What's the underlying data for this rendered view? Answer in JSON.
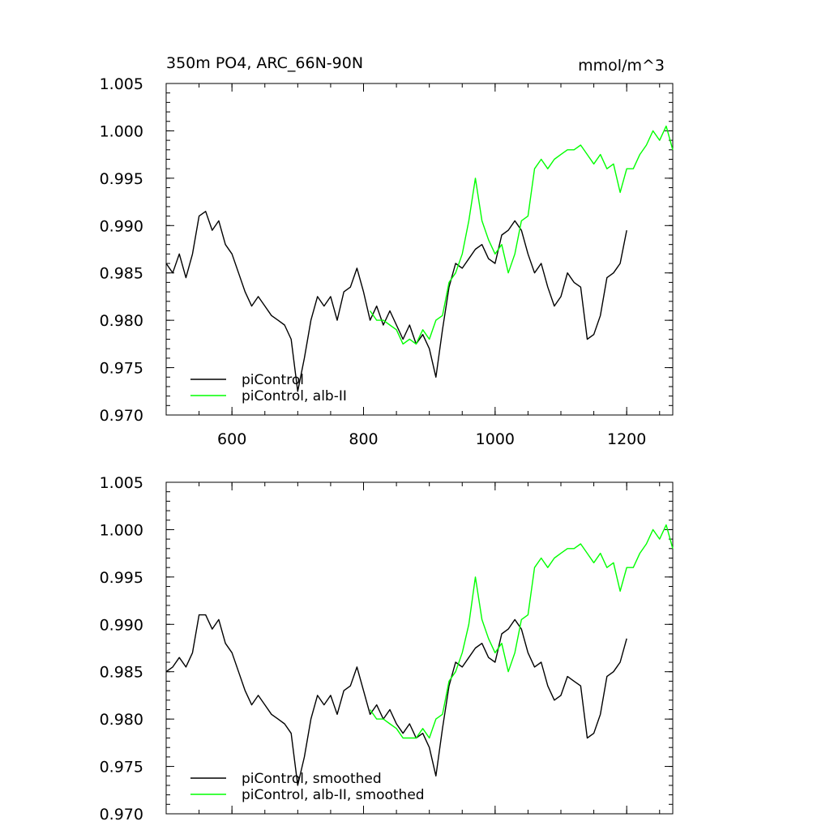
{
  "figure": {
    "title_left": "350m PO4, ARC_66N-90N",
    "title_right": "mmol/m^3"
  },
  "colors": {
    "piControl": "#000000",
    "albII": "#00ff00"
  },
  "chart_data": [
    {
      "type": "line",
      "title": "350m PO4, ARC_66N-90N",
      "units": "mmol/m^3",
      "xlim": [
        500,
        1270
      ],
      "ylim": [
        0.97,
        1.005
      ],
      "xticks": [
        600,
        800,
        1000,
        1200
      ],
      "xtick_labels": [
        "600",
        "800",
        "1000",
        "1200"
      ],
      "yticks": [
        0.97,
        0.975,
        0.98,
        0.985,
        0.99,
        0.995,
        1.0,
        1.005
      ],
      "ytick_labels": [
        "0.970",
        "0.975",
        "0.980",
        "0.985",
        "0.990",
        "0.995",
        "1.000",
        "1.005"
      ],
      "legend_position": "bottom-left",
      "series": [
        {
          "name": "piControl",
          "color": "#000000",
          "x": [
            500,
            510,
            520,
            530,
            540,
            550,
            560,
            570,
            580,
            590,
            600,
            610,
            620,
            630,
            640,
            650,
            660,
            670,
            680,
            690,
            700,
            710,
            720,
            730,
            740,
            750,
            760,
            770,
            780,
            790,
            800,
            810,
            820,
            830,
            840,
            850,
            860,
            870,
            880,
            890,
            900,
            910,
            920,
            930,
            940,
            950,
            960,
            970,
            980,
            990,
            1000,
            1010,
            1020,
            1030,
            1040,
            1050,
            1060,
            1070,
            1080,
            1090,
            1100,
            1110,
            1120,
            1130,
            1140,
            1150,
            1160,
            1170,
            1180,
            1190,
            1200
          ],
          "y": [
            0.986,
            0.985,
            0.987,
            0.9845,
            0.987,
            0.991,
            0.9915,
            0.9895,
            0.9905,
            0.988,
            0.987,
            0.985,
            0.983,
            0.9815,
            0.9825,
            0.9815,
            0.9805,
            0.98,
            0.9795,
            0.978,
            0.9725,
            0.976,
            0.98,
            0.9825,
            0.9815,
            0.9825,
            0.98,
            0.983,
            0.9835,
            0.9855,
            0.983,
            0.98,
            0.9815,
            0.9795,
            0.981,
            0.9795,
            0.978,
            0.9795,
            0.9775,
            0.9785,
            0.977,
            0.974,
            0.979,
            0.9835,
            0.986,
            0.9855,
            0.9865,
            0.9875,
            0.988,
            0.9865,
            0.986,
            0.989,
            0.9895,
            0.9905,
            0.9895,
            0.987,
            0.985,
            0.986,
            0.9835,
            0.9815,
            0.9825,
            0.985,
            0.984,
            0.9835,
            0.978,
            0.9785,
            0.9805,
            0.9845,
            0.985,
            0.986,
            0.9895
          ]
        },
        {
          "name": "piControl, alb-II",
          "color": "#00ff00",
          "x": [
            810,
            820,
            830,
            840,
            850,
            860,
            870,
            880,
            890,
            900,
            910,
            920,
            930,
            940,
            950,
            960,
            970,
            980,
            990,
            1000,
            1010,
            1020,
            1030,
            1040,
            1050,
            1060,
            1070,
            1080,
            1090,
            1100,
            1110,
            1120,
            1130,
            1140,
            1150,
            1160,
            1170,
            1180,
            1190,
            1200,
            1210,
            1220,
            1230,
            1240,
            1250,
            1260,
            1270
          ],
          "y": [
            0.981,
            0.98,
            0.98,
            0.9795,
            0.979,
            0.9775,
            0.978,
            0.9775,
            0.979,
            0.978,
            0.98,
            0.9805,
            0.984,
            0.985,
            0.987,
            0.9905,
            0.995,
            0.9905,
            0.9885,
            0.987,
            0.988,
            0.985,
            0.987,
            0.9905,
            0.991,
            0.996,
            0.997,
            0.996,
            0.997,
            0.9975,
            0.998,
            0.998,
            0.9985,
            0.9975,
            0.9965,
            0.9975,
            0.996,
            0.9965,
            0.9935,
            0.996,
            0.996,
            0.9975,
            0.9985,
            1.0,
            0.999,
            1.0005,
            0.998
          ]
        }
      ]
    },
    {
      "type": "line",
      "xlim": [
        500,
        1270
      ],
      "ylim": [
        0.97,
        1.005
      ],
      "xticks": [
        600,
        800,
        1000,
        1200
      ],
      "yticks": [
        0.97,
        0.975,
        0.98,
        0.985,
        0.99,
        0.995,
        1.0,
        1.005
      ],
      "ytick_labels": [
        "0.970",
        "0.975",
        "0.980",
        "0.985",
        "0.990",
        "0.995",
        "1.000",
        "1.005"
      ],
      "legend_position": "bottom-left",
      "series": [
        {
          "name": "piControl, smoothed",
          "color": "#000000",
          "x": [
            500,
            510,
            520,
            530,
            540,
            550,
            560,
            570,
            580,
            590,
            600,
            610,
            620,
            630,
            640,
            650,
            660,
            670,
            680,
            690,
            700,
            710,
            720,
            730,
            740,
            750,
            760,
            770,
            780,
            790,
            800,
            810,
            820,
            830,
            840,
            850,
            860,
            870,
            880,
            890,
            900,
            910,
            920,
            930,
            940,
            950,
            960,
            970,
            980,
            990,
            1000,
            1010,
            1020,
            1030,
            1040,
            1050,
            1060,
            1070,
            1080,
            1090,
            1100,
            1110,
            1120,
            1130,
            1140,
            1150,
            1160,
            1170,
            1180,
            1190,
            1200
          ],
          "y": [
            0.985,
            0.9855,
            0.9865,
            0.9855,
            0.987,
            0.991,
            0.991,
            0.9895,
            0.9905,
            0.988,
            0.987,
            0.985,
            0.983,
            0.9815,
            0.9825,
            0.9815,
            0.9805,
            0.98,
            0.9795,
            0.9785,
            0.973,
            0.976,
            0.98,
            0.9825,
            0.9815,
            0.9825,
            0.9805,
            0.983,
            0.9835,
            0.9855,
            0.983,
            0.9805,
            0.9815,
            0.98,
            0.981,
            0.9795,
            0.9785,
            0.9795,
            0.978,
            0.9785,
            0.977,
            0.974,
            0.979,
            0.9835,
            0.986,
            0.9855,
            0.9865,
            0.9875,
            0.988,
            0.9865,
            0.986,
            0.989,
            0.9895,
            0.9905,
            0.9895,
            0.987,
            0.9855,
            0.986,
            0.9835,
            0.982,
            0.9825,
            0.9845,
            0.984,
            0.9835,
            0.978,
            0.9785,
            0.9805,
            0.9845,
            0.985,
            0.986,
            0.9885
          ]
        },
        {
          "name": "piControl, alb-II, smoothed",
          "color": "#00ff00",
          "x": [
            810,
            820,
            830,
            840,
            850,
            860,
            870,
            880,
            890,
            900,
            910,
            920,
            930,
            940,
            950,
            960,
            970,
            980,
            990,
            1000,
            1010,
            1020,
            1030,
            1040,
            1050,
            1060,
            1070,
            1080,
            1090,
            1100,
            1110,
            1120,
            1130,
            1140,
            1150,
            1160,
            1170,
            1180,
            1190,
            1200,
            1210,
            1220,
            1230,
            1240,
            1250,
            1260,
            1270
          ],
          "y": [
            0.981,
            0.98,
            0.98,
            0.9795,
            0.979,
            0.978,
            0.978,
            0.978,
            0.979,
            0.978,
            0.98,
            0.9805,
            0.984,
            0.985,
            0.987,
            0.99,
            0.995,
            0.9905,
            0.9885,
            0.987,
            0.988,
            0.985,
            0.987,
            0.9905,
            0.991,
            0.996,
            0.997,
            0.996,
            0.997,
            0.9975,
            0.998,
            0.998,
            0.9985,
            0.9975,
            0.9965,
            0.9975,
            0.996,
            0.9965,
            0.9935,
            0.996,
            0.996,
            0.9975,
            0.9985,
            1.0,
            0.999,
            1.0005,
            0.998
          ]
        }
      ]
    }
  ]
}
